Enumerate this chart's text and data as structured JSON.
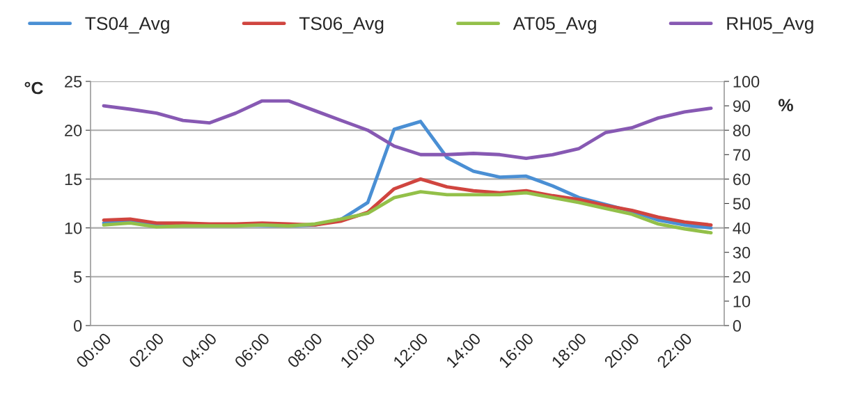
{
  "chart_data": {
    "type": "line",
    "ylabel": "°C",
    "y2label": "%",
    "categories": [
      "00:00",
      null,
      "02:00",
      null,
      "04:00",
      null,
      "06:00",
      null,
      "08:00",
      null,
      "10:00",
      null,
      "12:00",
      null,
      "14:00",
      null,
      "16:00",
      null,
      "18:00",
      null,
      "20:00",
      null,
      "22:00",
      null
    ],
    "series": [
      {
        "name": "TS04_Avg",
        "color": "#4a8fd4",
        "values": [
          10.5,
          10.7,
          10.3,
          10.3,
          10.3,
          10.3,
          null,
          10.2,
          10.3,
          10.9,
          12.6,
          20.1,
          20.9,
          17.2,
          15.8,
          15.2,
          15.3,
          14.3,
          13.1,
          12.4,
          11.7,
          10.8,
          10.3,
          10.0
        ]
      },
      {
        "name": "TS06_Avg",
        "color": "#d0453f",
        "values": [
          10.8,
          10.9,
          10.5,
          10.5,
          10.4,
          10.4,
          10.5,
          10.4,
          10.3,
          10.7,
          11.6,
          14.0,
          15.0,
          14.2,
          13.8,
          13.6,
          13.8,
          13.3,
          12.9,
          12.3,
          11.8,
          11.1,
          10.6,
          10.3
        ]
      },
      {
        "name": "AT05_Avg",
        "color": "#93c049",
        "values": [
          10.3,
          10.5,
          10.1,
          10.2,
          10.2,
          10.2,
          10.3,
          10.2,
          10.4,
          10.9,
          11.5,
          13.1,
          13.7,
          13.4,
          13.4,
          13.4,
          13.6,
          13.1,
          12.6,
          12.0,
          11.4,
          10.4,
          9.9,
          9.5
        ]
      },
      {
        "name": "RH05_Avg",
        "color": "#8759b3",
        "axis": "y2",
        "values": [
          90,
          88.6,
          87,
          84,
          83,
          87,
          92,
          92,
          88,
          84,
          80,
          73.5,
          70,
          70,
          70.5,
          70,
          68.5,
          70,
          72.5,
          79,
          81,
          85,
          87.5,
          89
        ]
      }
    ],
    "ylim": [
      0,
      25
    ],
    "yticks": [
      0,
      5,
      10,
      15,
      20,
      25
    ],
    "y2lim": [
      0,
      100
    ],
    "y2ticks": [
      0,
      10,
      20,
      30,
      40,
      50,
      60,
      70,
      80,
      90,
      100
    ],
    "grid": "y",
    "legend": "top",
    "marker": "none",
    "line_style": "solid"
  }
}
